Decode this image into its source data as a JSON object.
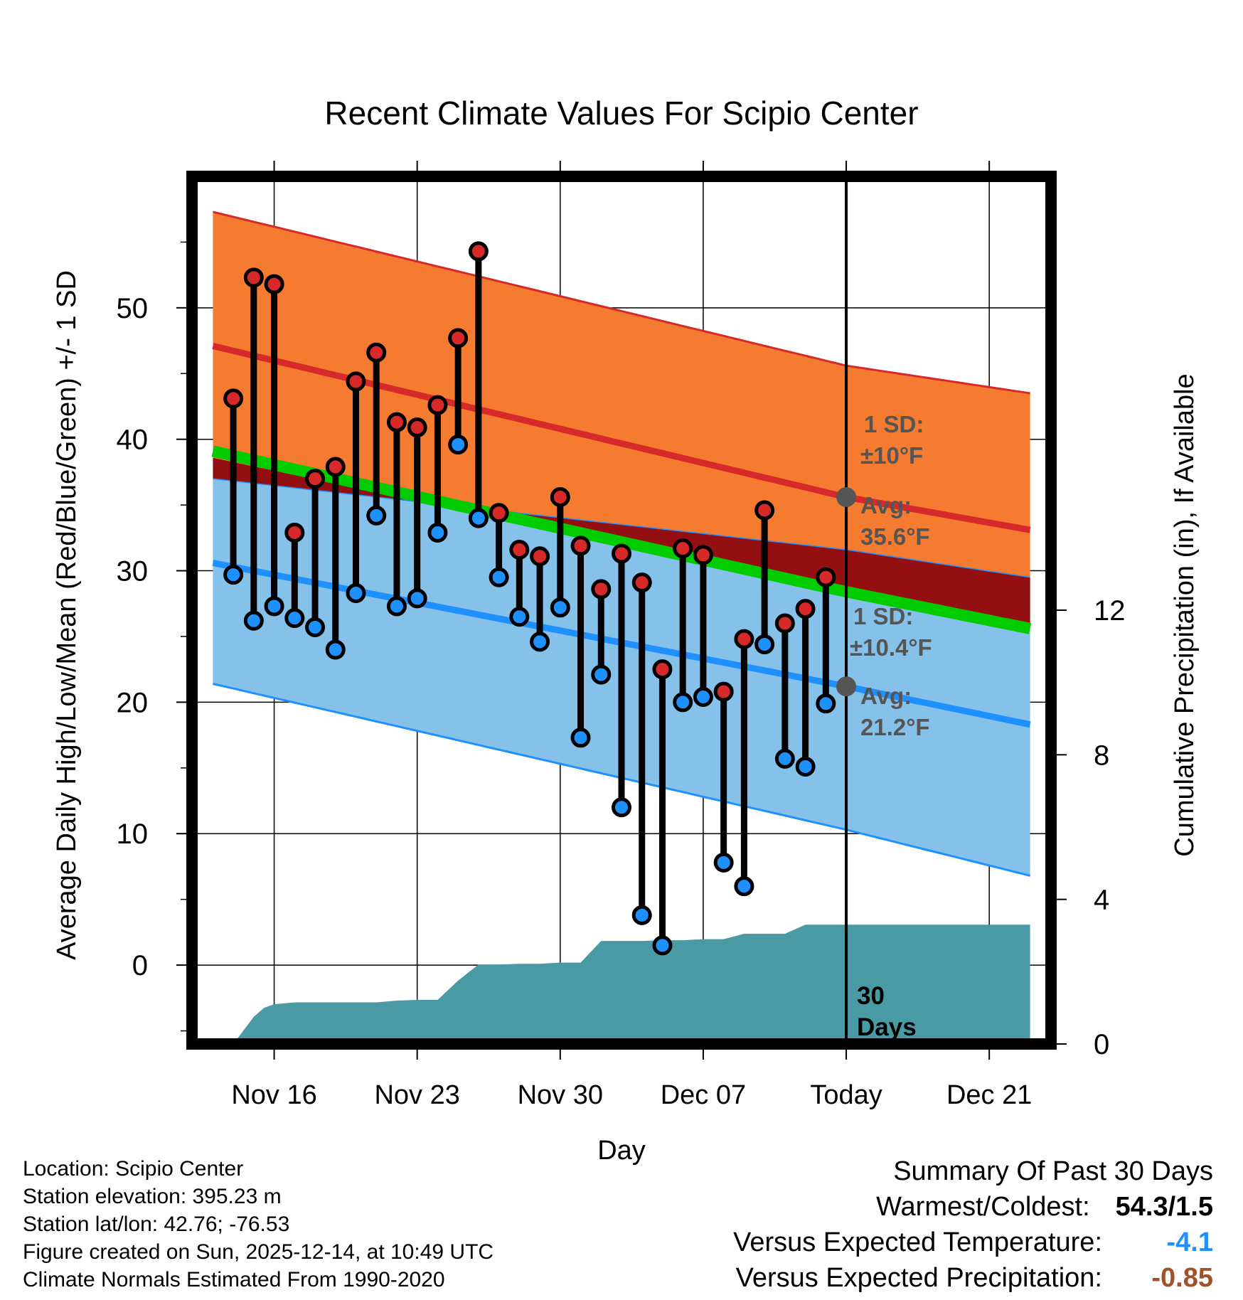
{
  "chart_data": {
    "type": "line",
    "title": "Recent Climate Values For Scipio Center",
    "xlabel": "Day",
    "ylabel": "Average Daily High/Low/Mean (Red/Blue/Green) +/- 1 SD",
    "y2label": "Cumulative Precipitation (in), If Available",
    "ylim": [
      -6,
      60
    ],
    "y2lim": [
      0,
      24
    ],
    "yticks": [
      0,
      10,
      20,
      30,
      40,
      50
    ],
    "y2ticks": [
      0,
      4,
      8,
      12
    ],
    "xlim": [
      -0.5,
      40.5
    ],
    "xtick_positions": [
      3,
      10,
      17,
      24,
      31,
      38
    ],
    "xtick_labels": [
      "Nov 16",
      "Nov 23",
      "Nov 30",
      "Dec 07",
      "Today",
      "Dec 21"
    ],
    "today_index": 31,
    "normals": {
      "x": [
        0,
        31,
        40
      ],
      "high_upper": [
        57.3,
        45.6,
        43.5
      ],
      "high_mean": [
        47.1,
        35.6,
        33.1
      ],
      "high_lower": [
        38.6,
        28.4,
        26.0
      ],
      "mean": [
        39.1,
        28.4,
        25.6
      ],
      "low_upper": [
        37.0,
        31.6,
        29.5
      ],
      "low_mean": [
        30.6,
        21.2,
        18.3
      ],
      "low_lower": [
        21.4,
        10.3,
        6.8
      ]
    },
    "observed": {
      "x": [
        1,
        2,
        3,
        4,
        5,
        6,
        7,
        8,
        9,
        10,
        11,
        12,
        13,
        14,
        15,
        16,
        17,
        18,
        19,
        20,
        21,
        22,
        23,
        24,
        25,
        26,
        27,
        28,
        29,
        30
      ],
      "high": [
        43.1,
        52.3,
        51.8,
        32.9,
        37.0,
        37.9,
        44.4,
        46.6,
        41.3,
        40.9,
        42.6,
        47.7,
        54.3,
        34.4,
        31.6,
        31.1,
        35.6,
        31.9,
        28.6,
        31.3,
        29.1,
        22.5,
        31.7,
        31.2,
        20.8,
        24.8,
        34.6,
        26.0,
        27.1,
        29.5
      ],
      "low": [
        29.7,
        26.2,
        27.3,
        26.4,
        25.7,
        24.0,
        28.3,
        34.2,
        27.3,
        27.9,
        32.9,
        39.6,
        34.0,
        29.5,
        26.5,
        24.6,
        27.2,
        17.3,
        22.1,
        12.0,
        3.8,
        1.5,
        20.0,
        20.4,
        7.8,
        6.0,
        24.4,
        15.7,
        15.1,
        19.9
      ]
    },
    "precip_cumulative": {
      "x": [
        0,
        1,
        2,
        2.5,
        3,
        4,
        5,
        6,
        7,
        8,
        9,
        10,
        11,
        12,
        13,
        14,
        15,
        16,
        17,
        18,
        19,
        20,
        21,
        22,
        23,
        24,
        25,
        26,
        27,
        28,
        29,
        30,
        31,
        40
      ],
      "values": [
        0.0,
        0.0,
        0.75,
        1.0,
        1.1,
        1.15,
        1.15,
        1.15,
        1.15,
        1.15,
        1.2,
        1.22,
        1.22,
        1.75,
        2.2,
        2.2,
        2.22,
        2.22,
        2.25,
        2.25,
        2.85,
        2.85,
        2.85,
        2.87,
        2.87,
        2.9,
        2.9,
        3.05,
        3.05,
        3.05,
        3.3,
        3.3,
        3.3,
        3.3
      ]
    },
    "annotations": {
      "high_sd_label": "1 SD:",
      "high_sd_value": "±10°F",
      "high_avg_label": "Avg:",
      "high_avg_value": "35.6°F",
      "low_sd_label": "1 SD:",
      "low_sd_value": "±10.4°F",
      "low_avg_label": "Avg:",
      "low_avg_value": "21.2°F",
      "days_label": "30",
      "days_label2": "Days"
    },
    "colors": {
      "high_band": "#f57b30",
      "high_line": "#d7292a",
      "mean_band": "#930f12",
      "mean_line": "#00cc00",
      "low_band": "#85c1e8",
      "low_line": "#1e90ff",
      "precip": "#4a9aa5",
      "high_dot": "#d7292a",
      "low_dot": "#1e90ff",
      "annotation": "#555555"
    }
  },
  "footer": {
    "location": "Location: Scipio Center",
    "elevation": "Station elevation: 395.23 m",
    "latlon": "Station lat/lon: 42.76; -76.53",
    "created": "Figure created on Sun, 2025-12-14, at 10:49 UTC",
    "normals": "Climate Normals Estimated From 1990-2020"
  },
  "summary": {
    "title": "Summary Of Past 30 Days",
    "warmest_label": "Warmest/Coldest:",
    "warmest_value": "54.3/1.5",
    "temp_label": "Versus Expected Temperature:",
    "temp_value": "-4.1",
    "temp_color": "#1e90ff",
    "precip_label": "Versus Expected Precipitation:",
    "precip_value": "-0.85",
    "precip_color": "#a0522d"
  }
}
